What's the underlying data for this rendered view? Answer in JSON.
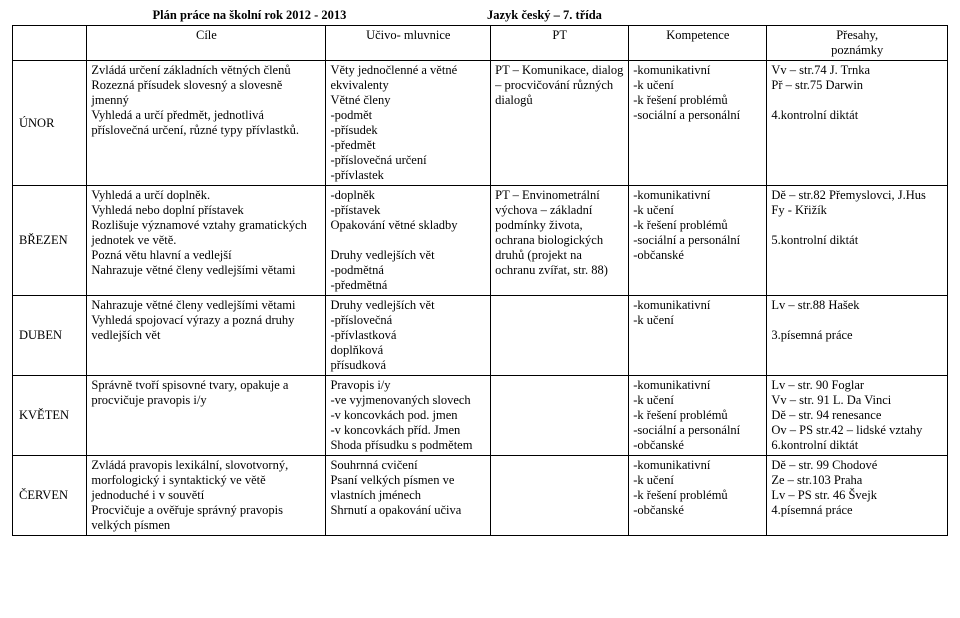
{
  "header": {
    "plan_title": "Plán práce na školní rok 2012 - 2013",
    "subject_title": "Jazyk český – 7. třída"
  },
  "columns": {
    "c0": "",
    "c1": "Cíle",
    "c2": "Učivo- mluvnice",
    "c3": "PT",
    "c4": "Kompetence",
    "c5_l1": "Přesahy,",
    "c5_l2": "poznámky"
  },
  "rows": [
    {
      "month": "ÚNOR",
      "goals": [
        "Zvládá určení základních větných členů",
        "Rozezná přísudek slovesný a slovesně jmenný",
        "Vyhledá a určí předmět, jednotlivá příslovečná určení, různé typy přívlastků."
      ],
      "topic": [
        "Věty jednočlenné a větné ekvivalenty",
        "Větné členy",
        "-podmět",
        "-přísudek",
        "-předmět",
        "-příslovečná určení",
        "-přívlastek"
      ],
      "pt": [
        "PT – Komunikace, dialog – procvičování různých dialogů"
      ],
      "comp": [
        "-komunikativní",
        "-k učení",
        "-k řešení problémů",
        "-sociální a personální"
      ],
      "over": [
        "Vv – str.74 J. Trnka",
        "Př – str.75 Darwin",
        "",
        "4.kontrolní diktát"
      ]
    },
    {
      "month": "BŘEZEN",
      "goals": [
        "Vyhledá a určí doplněk.",
        "Vyhledá nebo doplní přístavek",
        "Rozlišuje významové vztahy gramatických jednotek ve větě.",
        "Pozná větu hlavní a vedlejší",
        "Nahrazuje větné členy vedlejšími větami"
      ],
      "topic": [
        "-doplněk",
        "-přístavek",
        "Opakování větné skladby",
        "",
        "Druhy vedlejších vět",
        "-podmětná",
        "-předmětná"
      ],
      "pt": [
        "PT – Envinometrální výchova – základní podmínky života, ochrana biologických druhů (projekt na ochranu zvířat, str. 88)"
      ],
      "comp": [
        "-komunikativní",
        "-k učení",
        "-k řešení problémů",
        "-sociální a personální",
        "-občanské"
      ],
      "over": [
        "Dě – str.82 Přemyslovci, J.Hus",
        "Fy -          Křižík",
        "",
        "5.kontrolní diktát"
      ]
    },
    {
      "month": "DUBEN",
      "goals": [
        "Nahrazuje větné členy vedlejšími větami",
        "Vyhledá spojovací výrazy a pozná druhy vedlejších vět"
      ],
      "topic": [
        "Druhy vedlejších vět",
        "-příslovečná",
        "-přívlastková",
        "doplňková",
        "přísudková"
      ],
      "pt": [
        ""
      ],
      "comp": [
        "-komunikativní",
        "-k učení"
      ],
      "over": [
        "Lv – str.88 Hašek",
        "",
        "3.písemná práce"
      ]
    },
    {
      "month": "KVĚTEN",
      "goals": [
        "Správně tvoří spisovné tvary, opakuje a procvičuje pravopis i/y"
      ],
      "topic": [
        "Pravopis i/y",
        "-ve vyjmenovaných slovech",
        "-v koncovkách pod. jmen",
        "-v koncovkách příd. Jmen",
        "Shoda přísudku s podmětem"
      ],
      "pt": [
        ""
      ],
      "comp": [
        "-komunikativní",
        "-k učení",
        "-k řešení problémů",
        "-sociální a personální",
        "-občanské"
      ],
      "over": [
        "Lv – str. 90 Foglar",
        "Vv – str. 91 L. Da Vinci",
        "Dě – str. 94 renesance",
        "Ov – PS str.42 – lidské vztahy",
        "6.kontrolní diktát"
      ]
    },
    {
      "month": "ČERVEN",
      "goals": [
        "Zvládá pravopis lexikální, slovotvorný, morfologický i syntaktický ve větě jednoduché i v souvětí",
        "Procvičuje a ověřuje správný pravopis velkých písmen"
      ],
      "topic": [
        "Souhrnná cvičení",
        "Psaní velkých písmen ve vlastních jménech",
        "Shrnutí a opakování učiva"
      ],
      "pt": [
        ""
      ],
      "comp": [
        "-komunikativní",
        "-k učení",
        "-k řešení problémů",
        "-občanské"
      ],
      "over": [
        "Dě – str. 99 Chodové",
        "Ze – str.103 Praha",
        "Lv – PS str. 46 Švejk",
        "4.písemná práce"
      ]
    }
  ]
}
